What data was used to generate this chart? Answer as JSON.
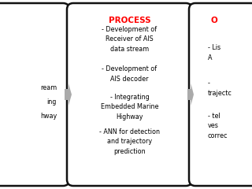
{
  "bg_color": "#ffffff",
  "box_border_color": "#111111",
  "box_fill_color": "#ffffff",
  "arrow_color": "#aaaaaa",
  "process_title": "PROCESS",
  "process_title_color": "#ff0000",
  "process_items": [
    "- Development of\nReceiver of AIS\ndata stream",
    "- Development of\nAIS decoder",
    "- Integrating\nEmbedded Marine\nHighway",
    "- ANN for detection\nand trajectory\nprediction"
  ],
  "left_partial_items": [
    "ream",
    "ing",
    "hway"
  ],
  "right_title": "O",
  "right_title_color": "#ff0000",
  "right_items": [
    "- Lis\nA",
    "- \ntrajectc",
    "- tel\nves\ncorrec"
  ],
  "font_size": 5.8,
  "title_font_size": 7.5
}
